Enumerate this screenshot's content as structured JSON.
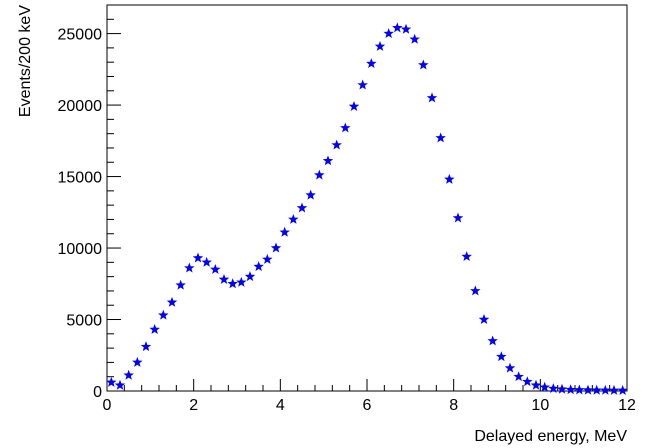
{
  "chart_data": {
    "type": "scatter",
    "xlabel": "Delayed energy, MeV",
    "ylabel": "Events/200 keV",
    "xlim": [
      0,
      12
    ],
    "ylim": [
      0,
      27000
    ],
    "xticks": [
      0,
      2,
      4,
      6,
      8,
      10,
      12
    ],
    "yticks": [
      0,
      5000,
      10000,
      15000,
      20000,
      25000
    ],
    "grid": false,
    "marker": "star",
    "marker_color": "#0000ff",
    "series": [
      {
        "points": [
          [
            0.1,
            600
          ],
          [
            0.3,
            400
          ],
          [
            0.5,
            1100
          ],
          [
            0.7,
            2000
          ],
          [
            0.9,
            3100
          ],
          [
            1.1,
            4300
          ],
          [
            1.3,
            5300
          ],
          [
            1.5,
            6200
          ],
          [
            1.7,
            7400
          ],
          [
            1.9,
            8600
          ],
          [
            2.1,
            9300
          ],
          [
            2.3,
            9000
          ],
          [
            2.5,
            8500
          ],
          [
            2.7,
            7800
          ],
          [
            2.9,
            7500
          ],
          [
            3.1,
            7600
          ],
          [
            3.3,
            8000
          ],
          [
            3.5,
            8700
          ],
          [
            3.7,
            9200
          ],
          [
            3.9,
            10000
          ],
          [
            4.1,
            11100
          ],
          [
            4.3,
            12000
          ],
          [
            4.5,
            12800
          ],
          [
            4.7,
            13700
          ],
          [
            4.9,
            15100
          ],
          [
            5.1,
            16100
          ],
          [
            5.3,
            17200
          ],
          [
            5.5,
            18400
          ],
          [
            5.7,
            19900
          ],
          [
            5.9,
            21400
          ],
          [
            6.1,
            22900
          ],
          [
            6.3,
            24100
          ],
          [
            6.5,
            25000
          ],
          [
            6.7,
            25400
          ],
          [
            6.9,
            25300
          ],
          [
            7.1,
            24600
          ],
          [
            7.3,
            22800
          ],
          [
            7.5,
            20500
          ],
          [
            7.7,
            17700
          ],
          [
            7.9,
            14800
          ],
          [
            8.1,
            12100
          ],
          [
            8.3,
            9400
          ],
          [
            8.5,
            7000
          ],
          [
            8.7,
            5000
          ],
          [
            8.9,
            3500
          ],
          [
            9.1,
            2400
          ],
          [
            9.3,
            1600
          ],
          [
            9.5,
            1000
          ],
          [
            9.7,
            650
          ],
          [
            9.9,
            400
          ],
          [
            10.1,
            260
          ],
          [
            10.3,
            170
          ],
          [
            10.5,
            120
          ],
          [
            10.7,
            90
          ],
          [
            10.9,
            70
          ],
          [
            11.1,
            60
          ],
          [
            11.3,
            50
          ],
          [
            11.5,
            45
          ],
          [
            11.7,
            40
          ],
          [
            11.9,
            35
          ]
        ]
      }
    ]
  }
}
